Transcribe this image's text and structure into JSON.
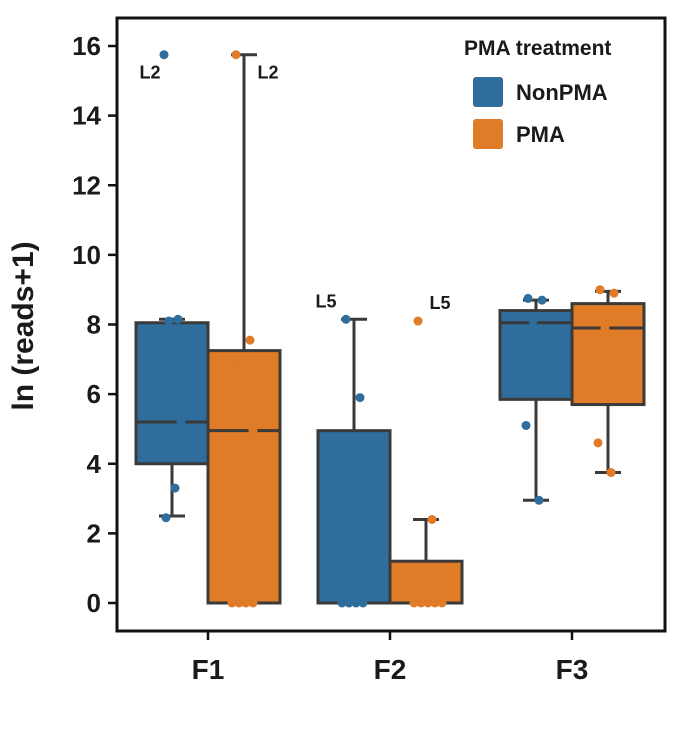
{
  "chart_data": {
    "type": "box",
    "ylabel": "ln (reads+1)",
    "xlabel": "",
    "ylim": [
      -0.85,
      16.6
    ],
    "yticks": [
      "0",
      "2",
      "4",
      "6",
      "8",
      "10",
      "12",
      "14",
      "16"
    ],
    "categories": [
      "F1",
      "F2",
      "F3"
    ],
    "legend": {
      "title": "PMA treatment",
      "position": "top-right",
      "entries": [
        {
          "name": "NonPMA",
          "color": "#2f6d9c"
        },
        {
          "name": "PMA",
          "color": "#e07b27"
        }
      ]
    },
    "series": [
      {
        "name": "NonPMA",
        "color": "#2f6d9c",
        "boxes": [
          {
            "category": "F1",
            "whisker_low": 2.5,
            "q1": 4.0,
            "median": 5.2,
            "q3": 8.05,
            "whisker_high": 8.15
          },
          {
            "category": "F2",
            "whisker_low": 0.0,
            "q1": 0.0,
            "median": 0.0,
            "q3": 4.95,
            "whisker_high": 8.15
          },
          {
            "category": "F3",
            "whisker_low": 2.95,
            "q1": 5.85,
            "median": 8.05,
            "q3": 8.4,
            "whisker_high": 8.7
          }
        ],
        "points": [
          {
            "category": "F1",
            "values": [
              15.75,
              8.15,
              8.1,
              5.2,
              4.6,
              3.3,
              2.45
            ]
          },
          {
            "category": "F2",
            "values": [
              8.15,
              5.9,
              4.2,
              0.0,
              0.0,
              0.0,
              0.0
            ]
          },
          {
            "category": "F3",
            "values": [
              8.75,
              8.7,
              8.1,
              6.4,
              5.1,
              2.95
            ]
          }
        ]
      },
      {
        "name": "PMA",
        "color": "#e07b27",
        "boxes": [
          {
            "category": "F1",
            "whisker_low": 0.0,
            "q1": 0.0,
            "median": 4.95,
            "q3": 7.25,
            "whisker_high": 15.75
          },
          {
            "category": "F2",
            "whisker_low": 0.0,
            "q1": 0.0,
            "median": 0.0,
            "q3": 1.2,
            "whisker_high": 2.4
          },
          {
            "category": "F3",
            "whisker_low": 3.75,
            "q1": 5.7,
            "median": 7.9,
            "q3": 8.6,
            "whisker_high": 8.95
          }
        ],
        "points": [
          {
            "category": "F1",
            "values": [
              15.75,
              7.55,
              6.8,
              4.95,
              0.0,
              0.0,
              0.0,
              0.0
            ]
          },
          {
            "category": "F2",
            "values": [
              8.1,
              2.4,
              0.0,
              0.0,
              0.0,
              0.0,
              0.0
            ]
          },
          {
            "category": "F3",
            "values": [
              9.0,
              8.9,
              7.9,
              6.6,
              4.6,
              3.75
            ]
          }
        ]
      }
    ],
    "annotations": [
      {
        "text": "L2",
        "category": "F1",
        "series": "NonPMA",
        "value": 15.75
      },
      {
        "text": "L2",
        "category": "F1",
        "series": "PMA",
        "value": 15.75
      },
      {
        "text": "L5",
        "category": "F2",
        "series": "NonPMA",
        "value": 8.15
      },
      {
        "text": "L5",
        "category": "F2",
        "series": "PMA",
        "value": 8.1
      }
    ]
  }
}
